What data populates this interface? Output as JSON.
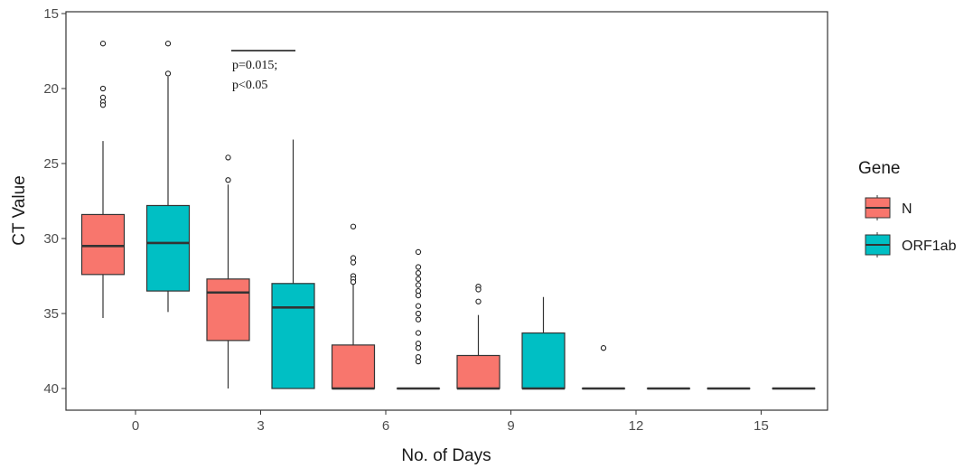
{
  "chart_data": {
    "type": "box",
    "xlabel": "No. of Days",
    "ylabel": "CT Value",
    "categories": [
      "0",
      "3",
      "6",
      "9",
      "12",
      "15"
    ],
    "y_ticks": [
      15,
      20,
      25,
      30,
      35,
      40
    ],
    "ylim": [
      15.2,
      41.3
    ],
    "y_reversed": true,
    "grid": false,
    "legend": {
      "title": "Gene",
      "position": "right"
    },
    "annotation": {
      "lines": [
        "p=0.015;",
        "p<0.05"
      ],
      "category": "3"
    },
    "series": [
      {
        "name": "N",
        "color": "#F8766D",
        "boxes": [
          {
            "category": "0",
            "q1": 28.4,
            "median": 30.5,
            "q3": 32.4,
            "whisker_low": 23.5,
            "whisker_high": 35.3,
            "outliers": [
              17.0,
              20.0,
              20.6,
              20.9,
              21.1
            ]
          },
          {
            "category": "3",
            "q1": 32.7,
            "median": 33.6,
            "q3": 36.8,
            "whisker_low": 26.4,
            "whisker_high": 40.0,
            "outliers": [
              24.6,
              26.1
            ]
          },
          {
            "category": "6",
            "q1": 37.1,
            "median": 40.0,
            "q3": 40.0,
            "whisker_low": 33.0,
            "whisker_high": 40.0,
            "outliers": [
              29.2,
              31.3,
              31.6,
              32.5,
              32.7,
              32.9
            ]
          },
          {
            "category": "9",
            "q1": 37.8,
            "median": 40.0,
            "q3": 40.0,
            "whisker_low": 35.1,
            "whisker_high": 40.0,
            "outliers": [
              33.2,
              33.4,
              34.2
            ]
          },
          {
            "category": "12",
            "q1": 40.0,
            "median": 40.0,
            "q3": 40.0,
            "whisker_low": 40.0,
            "whisker_high": 40.0,
            "outliers": [
              37.3
            ]
          },
          {
            "category": "15",
            "q1": 40.0,
            "median": 40.0,
            "q3": 40.0,
            "whisker_low": 40.0,
            "whisker_high": 40.0,
            "outliers": []
          }
        ]
      },
      {
        "name": "ORF1ab",
        "color": "#00BFC4",
        "boxes": [
          {
            "category": "0",
            "q1": 27.8,
            "median": 30.3,
            "q3": 33.5,
            "whisker_low": 19.2,
            "whisker_high": 34.9,
            "outliers": [
              17.0,
              19.0
            ]
          },
          {
            "category": "3",
            "q1": 33.0,
            "median": 34.6,
            "q3": 40.0,
            "whisker_low": 23.4,
            "whisker_high": 40.0,
            "outliers": []
          },
          {
            "category": "6",
            "q1": 40.0,
            "median": 40.0,
            "q3": 40.0,
            "whisker_low": 40.0,
            "whisker_high": 40.0,
            "outliers": [
              30.9,
              31.9,
              32.3,
              32.7,
              33.1,
              33.5,
              33.8,
              34.5,
              35.0,
              35.4,
              36.3,
              37.0,
              37.3,
              37.9,
              38.2
            ]
          },
          {
            "category": "9",
            "q1": 36.3,
            "median": 40.0,
            "q3": 40.0,
            "whisker_low": 33.9,
            "whisker_high": 40.0,
            "outliers": []
          },
          {
            "category": "12",
            "q1": 40.0,
            "median": 40.0,
            "q3": 40.0,
            "whisker_low": 40.0,
            "whisker_high": 40.0,
            "outliers": []
          },
          {
            "category": "15",
            "q1": 40.0,
            "median": 40.0,
            "q3": 40.0,
            "whisker_low": 40.0,
            "whisker_high": 40.0,
            "outliers": []
          }
        ]
      }
    ]
  }
}
